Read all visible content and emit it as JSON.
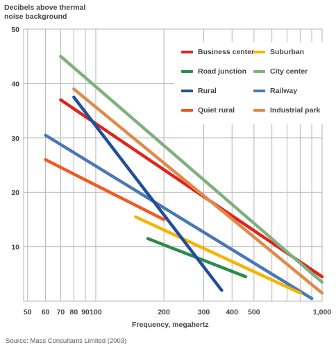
{
  "chart_data": {
    "type": "line",
    "title": "",
    "ylabel": "Decibels above thermal noise background",
    "xlabel": "Frequency, megahertz",
    "source": "Source: Mass Consultants Limited (2003)",
    "x_scale": "log",
    "xlim": [
      48,
      1000
    ],
    "ylim": [
      0,
      50
    ],
    "grid": true,
    "legend_position": "top-right",
    "x_ticks": [
      50,
      60,
      70,
      80,
      90,
      100,
      200,
      300,
      400,
      500,
      1000
    ],
    "x_tick_labels": [
      "50",
      "60",
      "70",
      "80",
      "90",
      "100",
      "200",
      "300",
      "400",
      "500",
      "1,000"
    ],
    "x_grid": [
      50,
      60,
      70,
      80,
      90,
      100,
      200,
      300,
      400,
      500,
      600,
      700,
      800,
      900,
      1000
    ],
    "y_ticks": [
      10,
      20,
      30,
      40,
      50
    ],
    "y_tick_labels": [
      "10",
      "20",
      "30",
      "40",
      "50"
    ],
    "series": [
      {
        "name": "Business center",
        "color": "#e2231a",
        "x": [
          70,
          1000
        ],
        "y": [
          37,
          4.5
        ]
      },
      {
        "name": "Suburban",
        "color": "#f6b400",
        "x": [
          150,
          800
        ],
        "y": [
          15.5,
          1.5
        ]
      },
      {
        "name": "Road junction",
        "color": "#2e8a4e",
        "x": [
          170,
          460
        ],
        "y": [
          11.5,
          4.5
        ]
      },
      {
        "name": "City center",
        "color": "#7fb07e",
        "x": [
          70,
          1000
        ],
        "y": [
          45,
          3.5
        ]
      },
      {
        "name": "Rural",
        "color": "#1f4e9c",
        "x": [
          80,
          360
        ],
        "y": [
          37.5,
          2
        ]
      },
      {
        "name": "Railway",
        "color": "#4a78b4",
        "x": [
          60,
          900
        ],
        "y": [
          30.5,
          0.5
        ]
      },
      {
        "name": "Quiet rural",
        "color": "#f05a23",
        "x": [
          60,
          200
        ],
        "y": [
          26,
          15
        ]
      },
      {
        "name": "Industrial park",
        "color": "#e08a4a",
        "x": [
          80,
          1000
        ],
        "y": [
          39,
          1.5
        ]
      }
    ]
  }
}
